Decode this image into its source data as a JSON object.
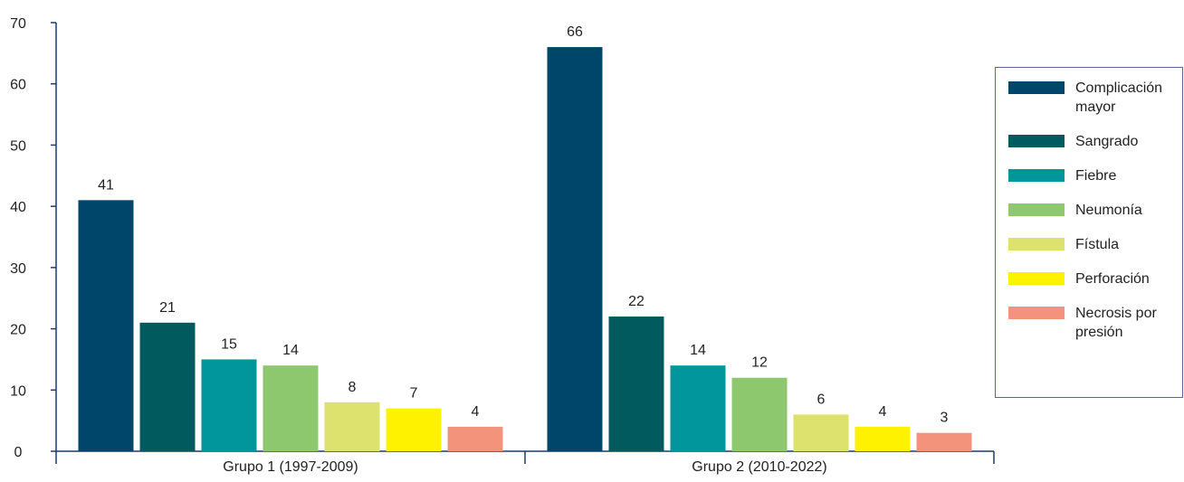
{
  "chart_data": {
    "type": "bar",
    "categories": [
      "Grupo 1 (1997-2009)",
      "Grupo 2 (2010-2022)"
    ],
    "series": [
      {
        "name": "Complicación mayor",
        "color": "#00456a",
        "values": [
          41,
          66
        ]
      },
      {
        "name": "Sangrado",
        "color": "#005a5e",
        "values": [
          21,
          22
        ]
      },
      {
        "name": "Fiebre",
        "color": "#00969c",
        "values": [
          15,
          14
        ]
      },
      {
        "name": "Neumonía",
        "color": "#8dc86e",
        "values": [
          14,
          12
        ]
      },
      {
        "name": "Fístula",
        "color": "#dde26e",
        "values": [
          8,
          6
        ]
      },
      {
        "name": "Perforación",
        "color": "#fff200",
        "values": [
          7,
          4
        ]
      },
      {
        "name": "Necrosis por presión",
        "color": "#f3937b",
        "values": [
          4,
          3
        ]
      }
    ],
    "ylim": [
      0,
      70
    ],
    "yticks": [
      0,
      10,
      20,
      30,
      40,
      50,
      60,
      70
    ],
    "legend": "right"
  }
}
